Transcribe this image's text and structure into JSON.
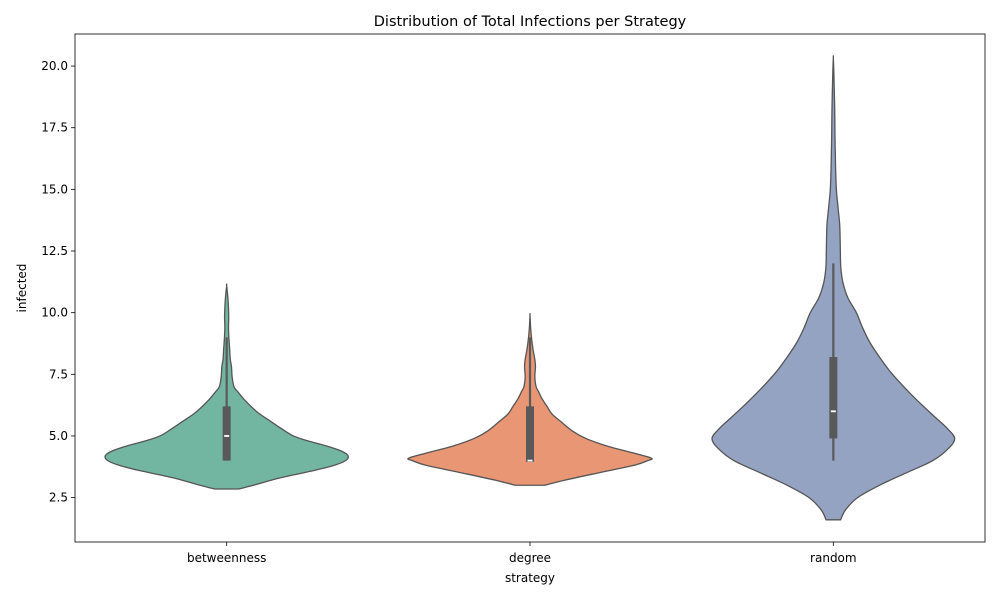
{
  "chart_data": {
    "type": "violin",
    "title": "Distribution of Total Infections per Strategy",
    "xlabel": "strategy",
    "ylabel": "infected",
    "ylim": [
      0.7,
      21.3
    ],
    "yticks": [
      "2.5",
      "5.0",
      "7.5",
      "10.0",
      "12.5",
      "15.0",
      "17.5",
      "20.0"
    ],
    "grid": false,
    "categories": [
      "betweenness",
      "degree",
      "random"
    ],
    "colors": [
      "#72b6a1",
      "#e99675",
      "#95a3c3"
    ],
    "outline_color": "#555555",
    "violins": [
      {
        "category": "betweenness",
        "min_extent": 2.85,
        "max_extent": 11.1,
        "box": {
          "q1": 4.0,
          "median": 5.0,
          "q3": 6.2,
          "whisker_low": 4.0,
          "whisker_high": 9.0
        },
        "density": [
          [
            2.85,
            0.1
          ],
          [
            3.0,
            0.22
          ],
          [
            3.3,
            0.44
          ],
          [
            3.6,
            0.72
          ],
          [
            3.8,
            0.88
          ],
          [
            4.0,
            0.98
          ],
          [
            4.2,
            1.0
          ],
          [
            4.4,
            0.94
          ],
          [
            4.6,
            0.82
          ],
          [
            4.8,
            0.67
          ],
          [
            5.0,
            0.55
          ],
          [
            5.3,
            0.45
          ],
          [
            5.6,
            0.36
          ],
          [
            5.9,
            0.27
          ],
          [
            6.2,
            0.2
          ],
          [
            6.5,
            0.14
          ],
          [
            6.8,
            0.09
          ],
          [
            7.0,
            0.06
          ],
          [
            7.4,
            0.045
          ],
          [
            7.8,
            0.04
          ],
          [
            8.1,
            0.03
          ],
          [
            8.5,
            0.025
          ],
          [
            9.0,
            0.018
          ],
          [
            9.4,
            0.015
          ],
          [
            9.8,
            0.017
          ],
          [
            10.2,
            0.015
          ],
          [
            10.6,
            0.01
          ],
          [
            11.1,
            0.0
          ]
        ]
      },
      {
        "category": "degree",
        "min_extent": 3.0,
        "max_extent": 9.9,
        "box": {
          "q1": 3.95,
          "median": 4.0,
          "q3": 6.2,
          "whisker_low": 3.95,
          "whisker_high": 9.0
        },
        "density": [
          [
            3.0,
            0.12
          ],
          [
            3.2,
            0.28
          ],
          [
            3.5,
            0.56
          ],
          [
            3.8,
            0.85
          ],
          [
            4.0,
            0.97
          ],
          [
            4.1,
            1.0
          ],
          [
            4.3,
            0.86
          ],
          [
            4.6,
            0.63
          ],
          [
            4.9,
            0.46
          ],
          [
            5.2,
            0.35
          ],
          [
            5.6,
            0.25
          ],
          [
            5.9,
            0.18
          ],
          [
            6.2,
            0.14
          ],
          [
            6.5,
            0.1
          ],
          [
            6.8,
            0.07
          ],
          [
            7.0,
            0.05
          ],
          [
            7.4,
            0.04
          ],
          [
            7.8,
            0.045
          ],
          [
            8.1,
            0.04
          ],
          [
            8.5,
            0.025
          ],
          [
            9.0,
            0.012
          ],
          [
            9.4,
            0.005
          ],
          [
            9.9,
            0.0
          ]
        ]
      },
      {
        "category": "random",
        "min_extent": 1.6,
        "max_extent": 20.35,
        "box": {
          "q1": 4.9,
          "median": 6.0,
          "q3": 8.2,
          "whisker_low": 4.0,
          "whisker_high": 12.0
        },
        "density": [
          [
            1.6,
            0.06
          ],
          [
            2.0,
            0.1
          ],
          [
            2.5,
            0.2
          ],
          [
            3.0,
            0.38
          ],
          [
            3.5,
            0.6
          ],
          [
            4.0,
            0.82
          ],
          [
            4.5,
            0.95
          ],
          [
            4.9,
            1.0
          ],
          [
            5.3,
            0.94
          ],
          [
            5.8,
            0.83
          ],
          [
            6.4,
            0.7
          ],
          [
            7.0,
            0.58
          ],
          [
            7.6,
            0.47
          ],
          [
            8.2,
            0.38
          ],
          [
            8.8,
            0.3
          ],
          [
            9.4,
            0.24
          ],
          [
            10.0,
            0.19
          ],
          [
            10.6,
            0.12
          ],
          [
            11.2,
            0.08
          ],
          [
            11.8,
            0.062
          ],
          [
            12.4,
            0.058
          ],
          [
            13.0,
            0.056
          ],
          [
            13.6,
            0.052
          ],
          [
            14.2,
            0.04
          ],
          [
            15.0,
            0.025
          ],
          [
            16.0,
            0.018
          ],
          [
            17.0,
            0.014
          ],
          [
            18.0,
            0.012
          ],
          [
            19.0,
            0.008
          ],
          [
            19.8,
            0.004
          ],
          [
            20.35,
            0.0
          ]
        ]
      }
    ]
  }
}
